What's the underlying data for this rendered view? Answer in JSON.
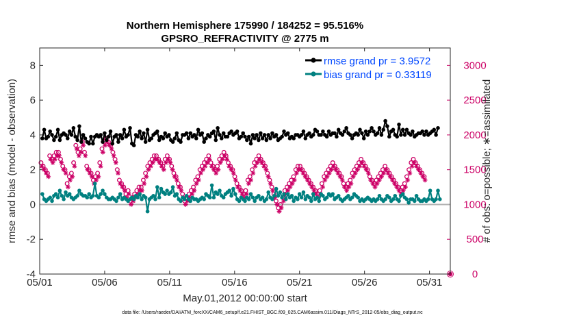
{
  "chart_data": {
    "type": "line",
    "title": "Northern Hemisphere 175990 / 184252 = 95.516%",
    "subtitle": "GPSRO_REFRACTIVITY @ 2775 m",
    "xlabel": "May.01,2012 00:00:00 start",
    "ylabel": "rmse and bias (model - observation)",
    "ylabel_right": "# of obs: o=possible; ∗=assimilated",
    "footnote": "data file: /Users/raeder/DAI/ATM_forcXX/CAM6_setup/f.e21.FHIST_BGC.f09_025.CAM6assim.011/Diags_NTrS_2012-05/obs_diag_output.nc",
    "xlim": [
      0,
      31.6
    ],
    "ylim": [
      -4,
      9
    ],
    "ylim_right": [
      0,
      3250
    ],
    "x_ticks": [
      0,
      5,
      10,
      15,
      20,
      25,
      30
    ],
    "x_tick_labels": [
      "05/01",
      "05/06",
      "05/11",
      "05/16",
      "05/21",
      "05/26",
      "05/31"
    ],
    "y_ticks": [
      -4,
      -2,
      0,
      2,
      4,
      6,
      8
    ],
    "y_tick_labels": [
      "-4",
      "-2",
      "0",
      "2",
      "4",
      "6",
      "8"
    ],
    "y_ticks_right": [
      0,
      500,
      1000,
      1500,
      2000,
      2500,
      3000
    ],
    "y_tick_labels_right": [
      "0",
      "500",
      "1000",
      "1500",
      "2000",
      "2500",
      "3000"
    ],
    "legend_position": "top-right",
    "colors": {
      "rmse": "#000000",
      "bias": "#008080",
      "obs": "#cc0066",
      "legend_text": "#0047ff",
      "zero_line": "#b3b3b3",
      "axis": "#262626"
    },
    "series": [
      {
        "name": "rmse grand pr = 3.9572",
        "axis": "left",
        "values": [
          3.8,
          4.3,
          3.8,
          3.9,
          4.2,
          4.0,
          3.7,
          3.9,
          4.3,
          3.7,
          4.0,
          4.1,
          4.0,
          3.8,
          4.2,
          4.0,
          4.4,
          3.9,
          3.7,
          4.5,
          3.6,
          4.0,
          3.8,
          3.6,
          3.5,
          3.9,
          3.5,
          3.9,
          4.0,
          3.9,
          4.0,
          3.6,
          4.1,
          3.7,
          3.9,
          4.2,
          3.5,
          3.9,
          4.0,
          3.6,
          4.0,
          3.8,
          4.3,
          3.9,
          4.0,
          4.4,
          3.5,
          3.4,
          4.0,
          3.9,
          4.2,
          3.8,
          4.1,
          3.6,
          4.3,
          3.7,
          3.8,
          4.0,
          4.1,
          4.2,
          3.7,
          3.9,
          3.8,
          4.1,
          3.9,
          4.0,
          3.7,
          3.6,
          3.8,
          4.1,
          3.7,
          3.6,
          4.0,
          4.0,
          4.1,
          3.8,
          4.1,
          3.9,
          4.0,
          3.8,
          4.3,
          4.0,
          4.1,
          3.6,
          3.8,
          4.0,
          3.9,
          4.1,
          4.2,
          3.7,
          4.4,
          4.0,
          3.8,
          4.1,
          3.9,
          3.9,
          4.1,
          4.2,
          4.0,
          4.1,
          4.2,
          3.8,
          3.9,
          4.1,
          3.9,
          3.7,
          3.9,
          3.5,
          4.0,
          3.8,
          4.0,
          3.7,
          4.1,
          3.8,
          4.0,
          3.7,
          4.0,
          3.8,
          4.1,
          3.9,
          4.0,
          3.7,
          3.8,
          3.9,
          4.2,
          4.0,
          4.1,
          3.8,
          3.9,
          3.8,
          4.0,
          4.0,
          3.9,
          4.0,
          4.2,
          3.8,
          4.0,
          4.1,
          3.9,
          4.0,
          4.3,
          4.2,
          4.0,
          4.0,
          4.2,
          4.0,
          3.9,
          4.2,
          4.0,
          4.1,
          4.1,
          3.9,
          4.3,
          4.1,
          4.0,
          4.2,
          4.4,
          4.1,
          4.0,
          3.8,
          4.0,
          4.1,
          4.0,
          4.3,
          4.1,
          3.8,
          4.2,
          4.0,
          4.2,
          4.4,
          4.2,
          4.0,
          4.1,
          4.4,
          4.0,
          4.3,
          4.8,
          4.5,
          3.9,
          4.2,
          4.3,
          4.0,
          3.9,
          4.6,
          4.0,
          4.3,
          4.0,
          4.3,
          4.1,
          4.0,
          4.2,
          3.9,
          4.0,
          4.1,
          4.1,
          4.2,
          4.0,
          4.2,
          4.0,
          4.1,
          4.2,
          4.3,
          4.0,
          4.4
        ]
      },
      {
        "name": "bias grand pr = 0.33119",
        "axis": "left",
        "values": [
          0.6,
          0.3,
          0.2,
          0.3,
          0.4,
          0.2,
          0.5,
          0.6,
          0.4,
          0.8,
          0.5,
          0.3,
          0.7,
          0.5,
          0.6,
          0.4,
          0.3,
          0.4,
          0.5,
          0.8,
          0.6,
          0.5,
          0.5,
          0.4,
          0.6,
          0.4,
          0.5,
          1.2,
          0.5,
          0.4,
          0.6,
          0.8,
          0.6,
          0.4,
          0.3,
          0.3,
          0.4,
          0.3,
          0.2,
          0.4,
          0.6,
          0.3,
          0.4,
          0.3,
          0.2,
          0.3,
          0.4,
          0.3,
          0.5,
          0.4,
          0.6,
          0.3,
          0.5,
          0.4,
          -0.4,
          0.3,
          0.4,
          0.5,
          0.3,
          1.0,
          0.4,
          0.9,
          0.7,
          0.6,
          0.8,
          0.6,
          0.7,
          1.0,
          0.5,
          0.6,
          0.3,
          0.2,
          0.4,
          0.3,
          0.5,
          0.3,
          0.2,
          0.4,
          0.3,
          0.3,
          0.2,
          0.3,
          0.4,
          0.3,
          0.6,
          0.5,
          0.4,
          1.1,
          0.4,
          0.7,
          0.6,
          0.8,
          0.5,
          0.4,
          0.6,
          0.7,
          0.8,
          0.5,
          0.9,
          0.6,
          0.3,
          0.2,
          0.4,
          0.3,
          0.2,
          0.4,
          0.3,
          0.6,
          0.4,
          0.2,
          0.4,
          0.5,
          0.3,
          0.4,
          0.2,
          0.3,
          0.7,
          0.4,
          0.3,
          0.5,
          0.9,
          0.5,
          0.7,
          0.4,
          0.6,
          0.3,
          0.6,
          0.4,
          0.5,
          0.2,
          0.4,
          0.3,
          0.6,
          0.4,
          0.7,
          0.3,
          0.5,
          0.4,
          0.2,
          0.6,
          0.3,
          0.4,
          0.2,
          0.6,
          0.5,
          0.3,
          0.4,
          0.6,
          0.5,
          0.6,
          0.3,
          0.4,
          0.5,
          0.3,
          0.2,
          0.3,
          0.4,
          0.5,
          0.3,
          0.4,
          0.6,
          0.5,
          0.4,
          0.2,
          0.3,
          0.2,
          0.3,
          0.4,
          0.3,
          0.2,
          0.3,
          0.2,
          0.3,
          0.5,
          0.3,
          0.2,
          0.3,
          0.5,
          0.4,
          0.2,
          0.3,
          0.5,
          0.3,
          0.2,
          0.5,
          0.6,
          0.4,
          0.3,
          0.1,
          0.3,
          0.3,
          0.2,
          0.5,
          0.3,
          0.2,
          0.2,
          0.3,
          0.2,
          0.3,
          0.8,
          0.3,
          0.2,
          0.3,
          0.8,
          0.3
        ]
      },
      {
        "name": "possible",
        "axis": "right",
        "marker": "o",
        "values": [
          1600,
          1550,
          1500,
          1450,
          1700,
          1650,
          1700,
          1750,
          1750,
          1650,
          1550,
          1500,
          1300,
          1400,
          1450,
          1600,
          1850,
          1750,
          1800,
          1900,
          1750,
          1550,
          1500,
          1450,
          1350,
          1400,
          1450,
          1600,
          1800,
          1900,
          1950,
          1900,
          1850,
          1750,
          1650,
          1500,
          1350,
          1300,
          1250,
          1150,
          1200,
          1050,
          1100,
          1150,
          1200,
          1250,
          1250,
          1350,
          1450,
          1550,
          1600,
          1650,
          1700,
          1700,
          1650,
          1600,
          1550,
          1650,
          1700,
          1650,
          1550,
          1450,
          1400,
          1300,
          1250,
          1150,
          1050,
          1100,
          1150,
          1200,
          1250,
          1350,
          1400,
          1500,
          1550,
          1600,
          1650,
          1700,
          1600,
          1550,
          1500,
          1550,
          1650,
          1700,
          1750,
          1700,
          1600,
          1550,
          1500,
          1400,
          1300,
          1250,
          1200,
          1150,
          1200,
          1350,
          1400,
          1500,
          1600,
          1650,
          1700,
          1650,
          1600,
          1550,
          1450,
          1350,
          1250,
          1150,
          1050,
          950,
          1000,
          1100,
          1200,
          1250,
          1300,
          1350,
          1400,
          1500,
          1550,
          1550,
          1500,
          1450,
          1400,
          1350,
          1300,
          1250,
          1200,
          1150,
          1200,
          1300,
          1400,
          1450,
          1500,
          1550,
          1600,
          1550,
          1500,
          1450,
          1400,
          1300,
          1250,
          1300,
          1350,
          1450,
          1500,
          1550,
          1600,
          1650,
          1600,
          1550,
          1500,
          1400,
          1350,
          1300,
          1350,
          1400,
          1450,
          1500,
          1550,
          1500,
          1450,
          1400,
          1350,
          1300,
          1250,
          1200,
          1250,
          1300,
          1400,
          1500,
          1600,
          1650,
          1600,
          1550,
          1500,
          1450,
          1400
        ]
      },
      {
        "name": "assimilated",
        "axis": "right",
        "marker": "*",
        "values": [
          1550,
          1500,
          1450,
          1400,
          1650,
          1600,
          1650,
          1700,
          1700,
          1600,
          1500,
          1450,
          1250,
          1350,
          1400,
          1550,
          1800,
          1700,
          1750,
          1850,
          1700,
          1500,
          1450,
          1400,
          1300,
          1350,
          1400,
          1550,
          1750,
          1850,
          1900,
          1850,
          1800,
          1700,
          1600,
          1450,
          1300,
          1250,
          1200,
          1100,
          1150,
          1000,
          1050,
          1100,
          1150,
          1200,
          1200,
          1300,
          1400,
          1500,
          1550,
          1600,
          1650,
          1650,
          1600,
          1550,
          1500,
          1600,
          1650,
          1600,
          1500,
          1400,
          1350,
          1250,
          1200,
          1100,
          1000,
          1050,
          1100,
          1150,
          1200,
          1300,
          1350,
          1450,
          1500,
          1550,
          1600,
          1650,
          1550,
          1500,
          1450,
          1500,
          1600,
          1650,
          1700,
          1650,
          1550,
          1500,
          1450,
          1350,
          1250,
          1200,
          1150,
          1100,
          1150,
          1300,
          1350,
          1450,
          1550,
          1600,
          1650,
          1600,
          1550,
          1500,
          1400,
          1300,
          1200,
          1100,
          1000,
          900,
          950,
          1050,
          1150,
          1200,
          1250,
          1300,
          1350,
          1450,
          1500,
          1500,
          1450,
          1400,
          1350,
          1300,
          1250,
          1200,
          1150,
          1100,
          1150,
          1250,
          1350,
          1400,
          1450,
          1500,
          1550,
          1500,
          1450,
          1400,
          1350,
          1250,
          1200,
          1250,
          1300,
          1400,
          1450,
          1500,
          1550,
          1600,
          1550,
          1500,
          1450,
          1350,
          1300,
          1250,
          1300,
          1350,
          1400,
          1450,
          1500,
          1450,
          1400,
          1350,
          1300,
          1250,
          1200,
          1150,
          1200,
          1250,
          1350,
          1450,
          1550,
          1600,
          1550,
          1500,
          1450,
          1400,
          1350
        ]
      }
    ],
    "obs_zero_marker": {
      "x": 31.6,
      "y": 0,
      "marker": "o*"
    }
  }
}
